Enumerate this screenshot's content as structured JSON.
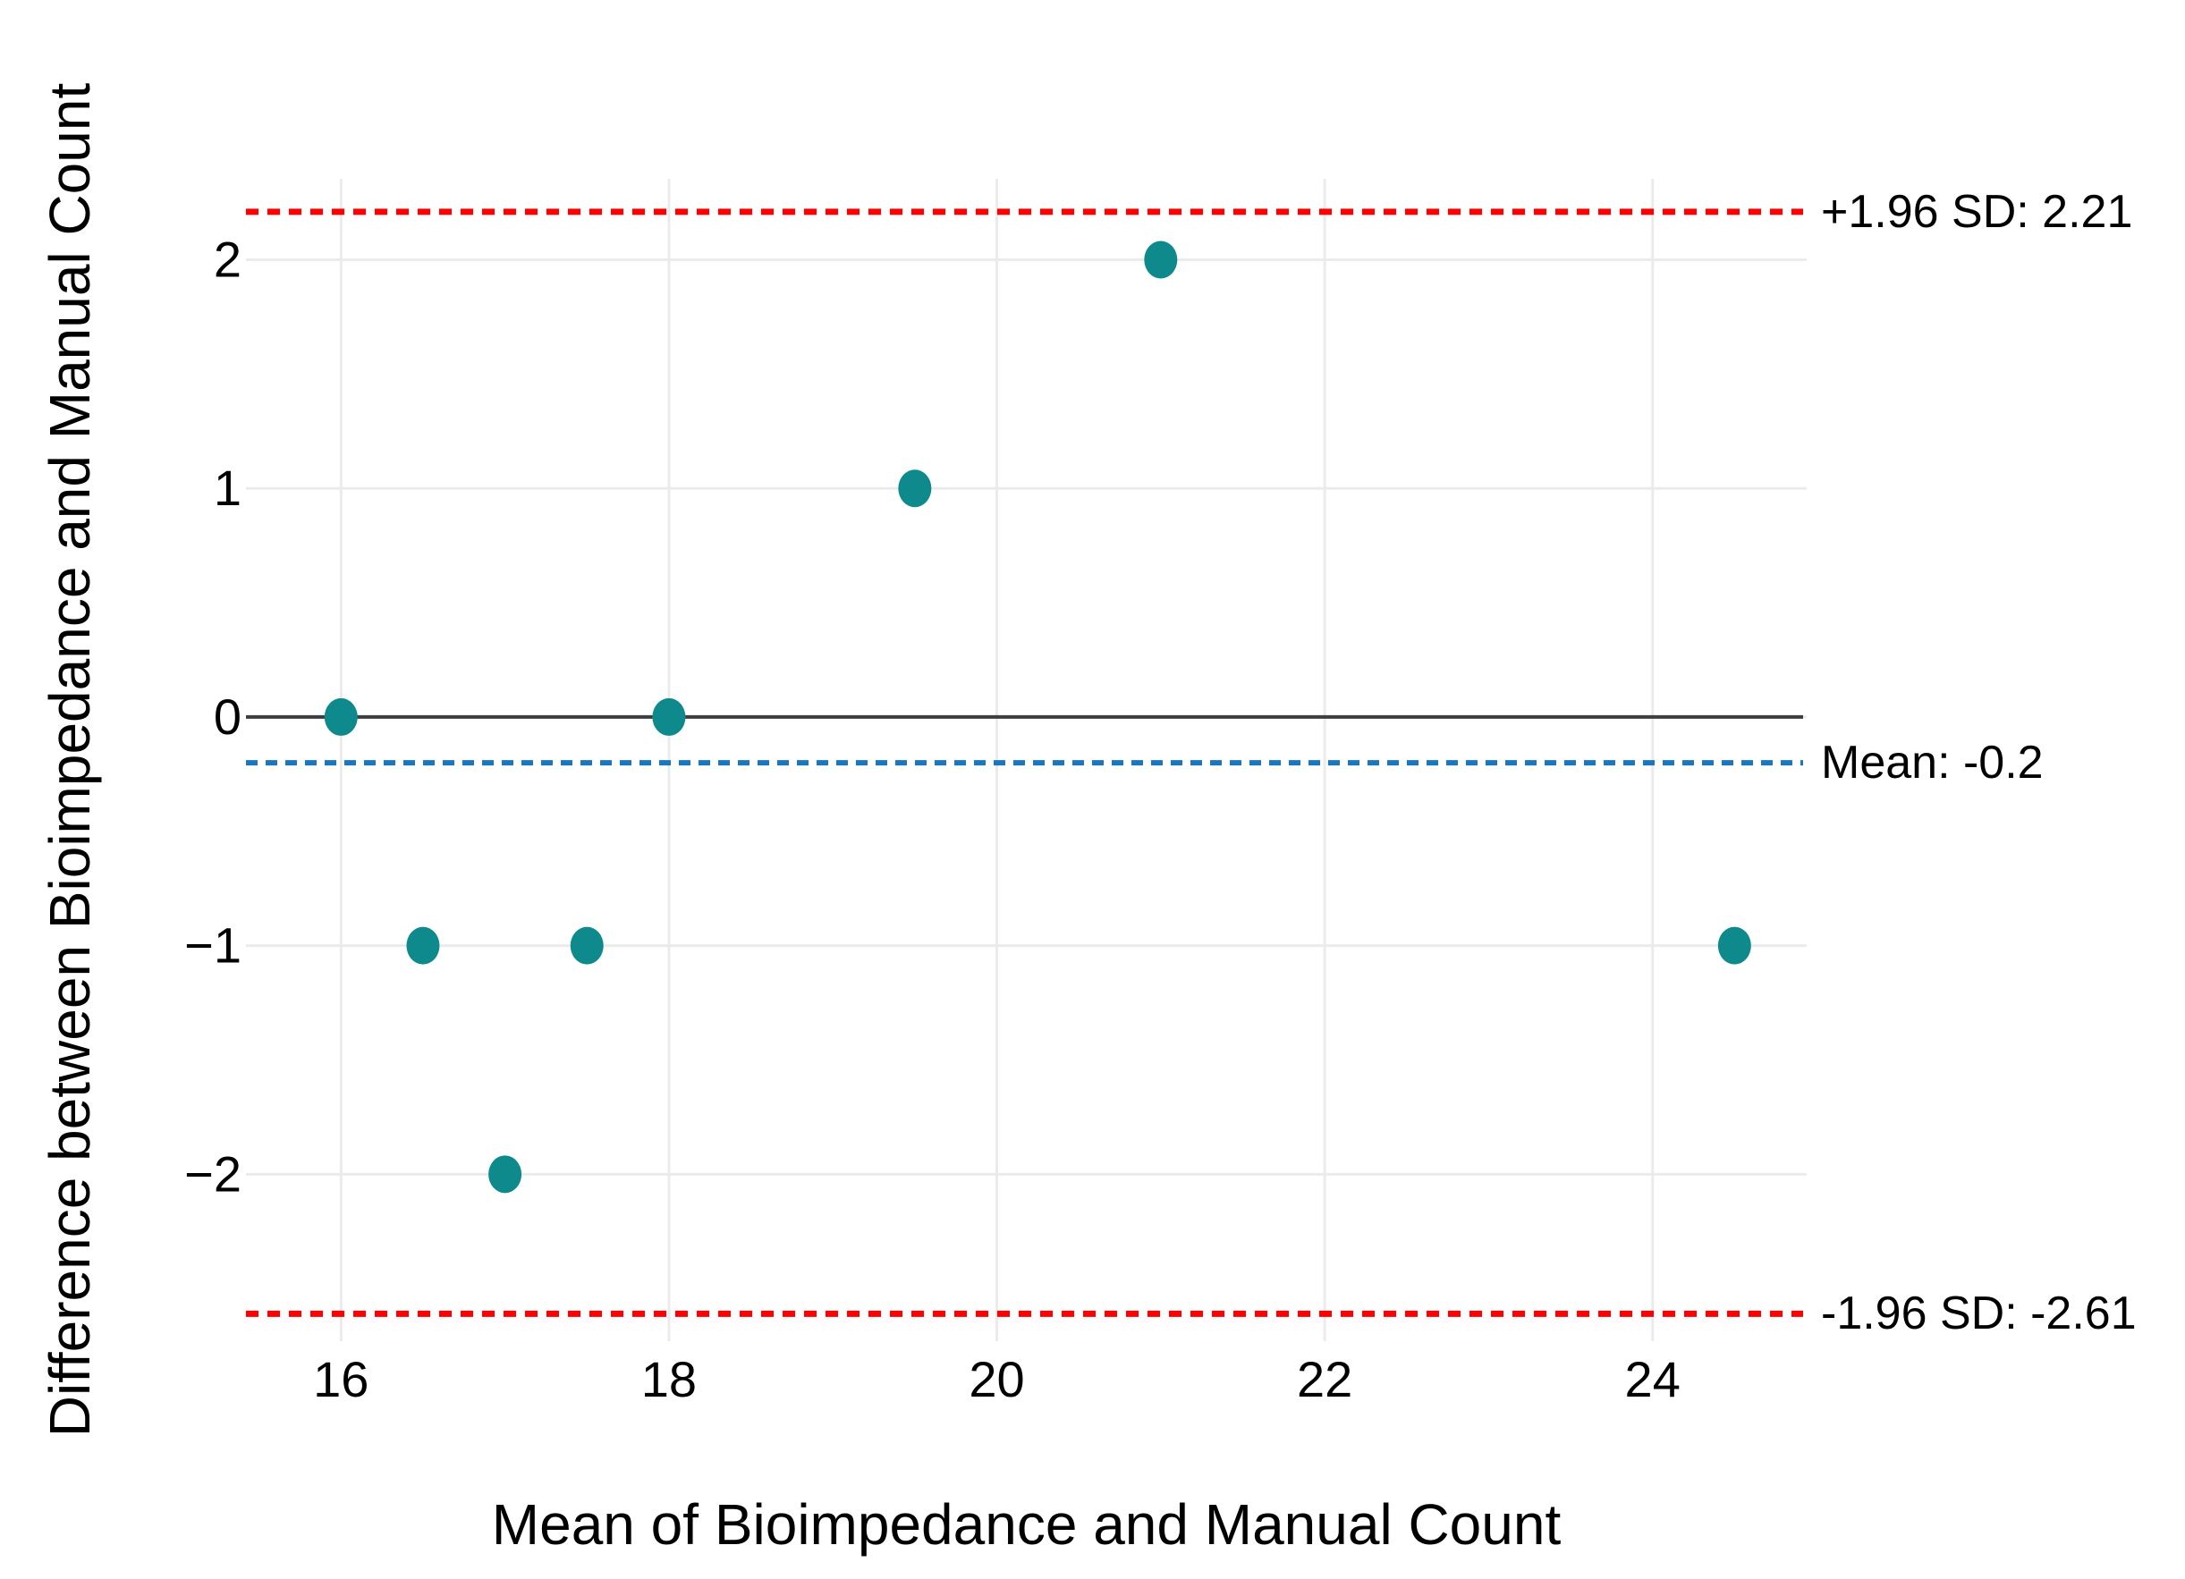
{
  "chart_data": {
    "type": "scatter",
    "title": "",
    "xlabel": "Mean of Bioimpedance and Manual Count",
    "ylabel": "Difference between Bioimpedance and Manual Count",
    "xlim": [
      15.42,
      24.94
    ],
    "ylim": [
      -2.73,
      2.354
    ],
    "grid": true,
    "legend": "none",
    "x_ticks": [
      16,
      18,
      20,
      22,
      24
    ],
    "x_tick_labels": [
      "16",
      "18",
      "20",
      "22",
      "24"
    ],
    "y_ticks": [
      2,
      1,
      0,
      -1,
      -2
    ],
    "y_tick_labels": [
      "2",
      "1",
      "0",
      "−1",
      "−2"
    ],
    "points": [
      {
        "mean": 16,
        "diff": 0
      },
      {
        "mean": 16.5,
        "diff": -1
      },
      {
        "mean": 17,
        "diff": -2
      },
      {
        "mean": 17.5,
        "diff": -1
      },
      {
        "mean": 18,
        "diff": 0
      },
      {
        "mean": 19.5,
        "diff": 1
      },
      {
        "mean": 21,
        "diff": 2
      },
      {
        "mean": 24.5,
        "diff": -1
      }
    ],
    "reference_lines": {
      "zero": {
        "y": 0,
        "label": ""
      },
      "mean": {
        "y": -0.2,
        "label": "Mean: -0.2"
      },
      "upper_loa": {
        "y": 2.21,
        "label": "+1.96 SD: 2.21"
      },
      "lower_loa": {
        "y": -2.61,
        "label": "-1.96 SD: -2.61"
      }
    },
    "colors": {
      "background": "#FFFFFF",
      "point": "#0E8A8C",
      "zero_line": "#3E3E3E",
      "mean_line": "#1C76BC",
      "loa_line": "#FF0000",
      "gridline": "#EBEBEB",
      "text": "#000000"
    }
  }
}
